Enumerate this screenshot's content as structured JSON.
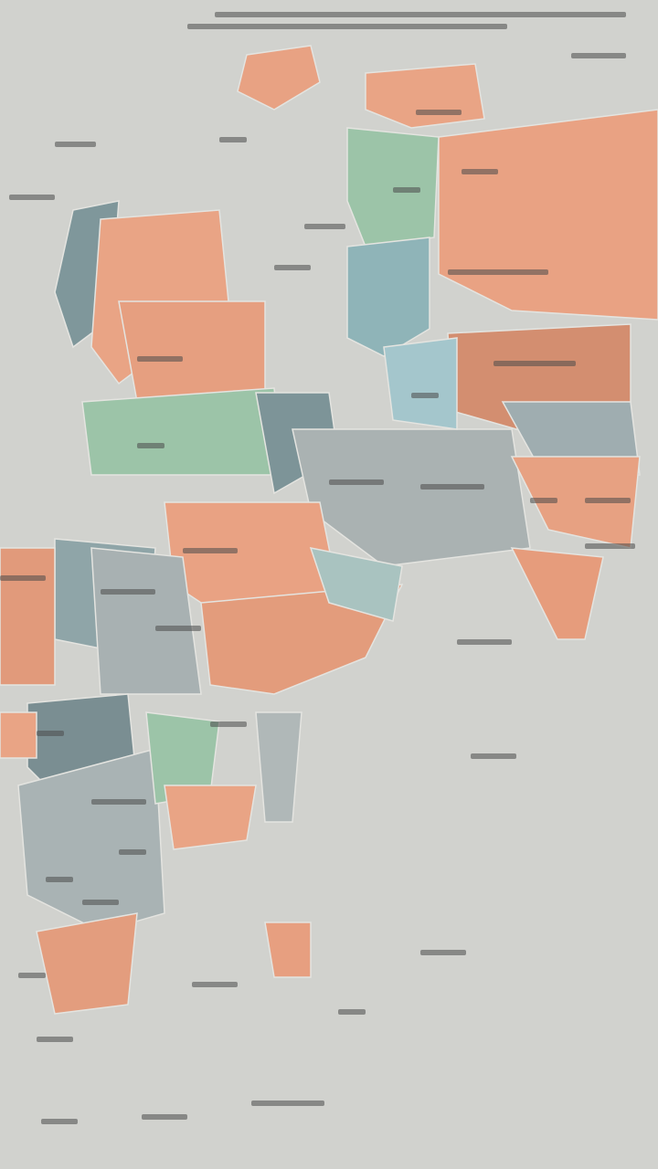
{
  "map": {
    "background": "#d1d2ce",
    "regions": [
      {
        "color": "#e8a283"
      },
      {
        "color": "#e9a485"
      },
      {
        "color": "#e9a283"
      },
      {
        "color": "#d38e70"
      },
      {
        "color": "#9cc4a8"
      },
      {
        "color": "#8fb4b8"
      },
      {
        "color": "#7f979b"
      },
      {
        "color": "#e9a485"
      },
      {
        "color": "#e69f80"
      },
      {
        "color": "#9cc4a8"
      },
      {
        "color": "#7d9498"
      },
      {
        "color": "#aab2b2"
      },
      {
        "color": "#a4c6cc"
      },
      {
        "color": "#9fadb0"
      },
      {
        "color": "#e7a182"
      },
      {
        "color": "#e69c7c"
      },
      {
        "color": "#e9a283"
      },
      {
        "color": "#8fa5a8"
      },
      {
        "color": "#e19a7b"
      },
      {
        "color": "#a8b1b2"
      },
      {
        "color": "#e39c7c"
      },
      {
        "color": "#7a8e92"
      },
      {
        "color": "#a9b3b4"
      },
      {
        "color": "#e39d7e"
      },
      {
        "color": "#9cc4a8"
      },
      {
        "color": "#e9a485"
      },
      {
        "color": "#e79f80"
      },
      {
        "color": "#b0b8b8"
      },
      {
        "color": "#e9a485"
      },
      {
        "color": "#a9c3c0"
      }
    ]
  }
}
